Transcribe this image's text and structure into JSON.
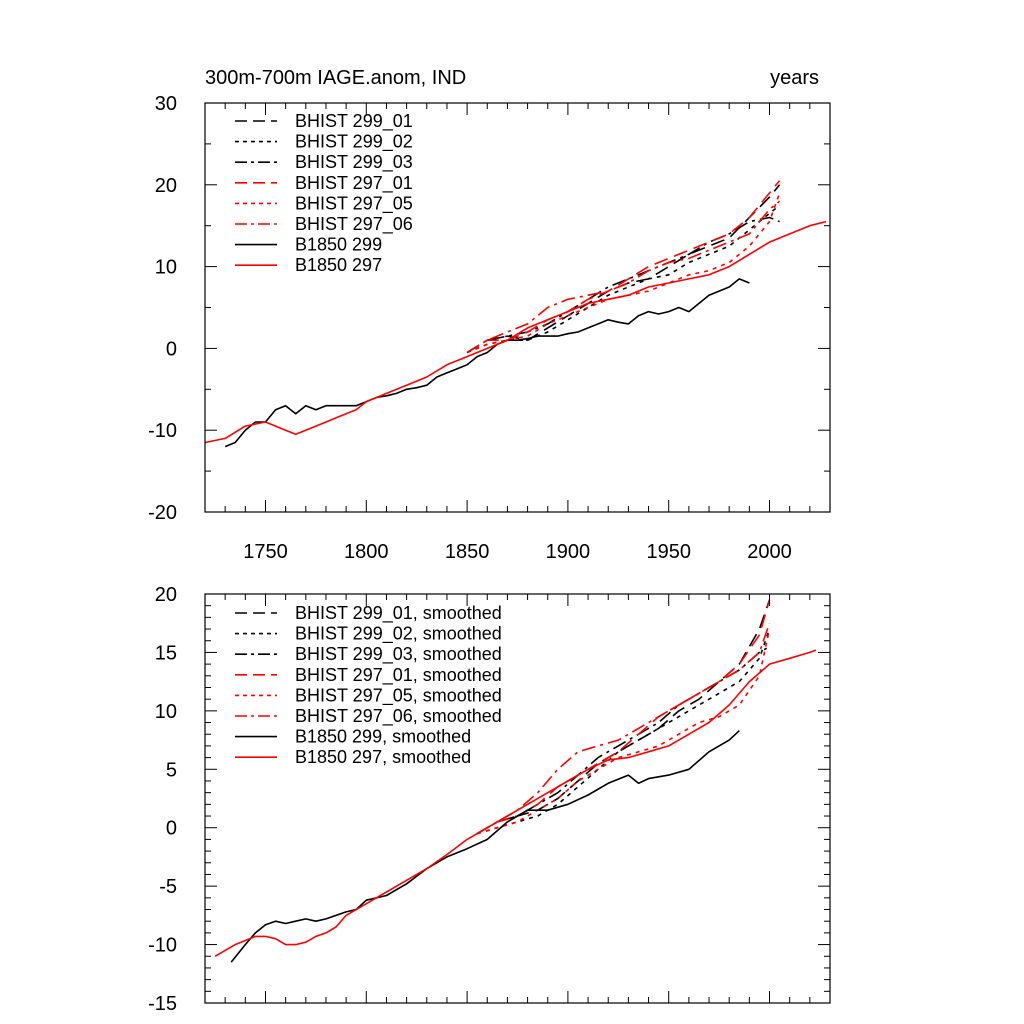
{
  "chart_data": [
    {
      "type": "line",
      "title_left": "300m-700m IAGE.anom, IND",
      "title_right": "years",
      "xlabel": "",
      "ylabel": "",
      "xlim": [
        1720,
        2030
      ],
      "ylim": [
        -20,
        30
      ],
      "xticks": [
        1750,
        1800,
        1850,
        1900,
        1950,
        2000
      ],
      "yticks": [
        -20,
        -10,
        0,
        10,
        20,
        30
      ],
      "grid": false,
      "legend_position": "top-left",
      "series": [
        {
          "name": "BHIST 299_01",
          "color": "#000000",
          "dash": "dash",
          "x": [
            1850,
            1860,
            1870,
            1880,
            1890,
            1900,
            1910,
            1920,
            1930,
            1940,
            1950,
            1960,
            1970,
            1980,
            1990,
            2000,
            2005
          ],
          "y": [
            -0.5,
            1.0,
            1.5,
            1.0,
            2.5,
            4.0,
            5.5,
            7.0,
            8.0,
            8.5,
            10.0,
            11.5,
            12.5,
            13.5,
            16.0,
            18.5,
            20.0
          ]
        },
        {
          "name": "BHIST 299_02",
          "color": "#000000",
          "dash": "dot",
          "x": [
            1850,
            1860,
            1870,
            1880,
            1890,
            1900,
            1910,
            1920,
            1930,
            1940,
            1950,
            1960,
            1970,
            1980,
            1990,
            2000,
            2005
          ],
          "y": [
            -0.5,
            0.5,
            1.0,
            1.0,
            2.0,
            3.5,
            5.0,
            6.5,
            7.5,
            8.5,
            9.0,
            10.5,
            11.5,
            12.5,
            14.5,
            16.5,
            17.5
          ]
        },
        {
          "name": "BHIST 299_03",
          "color": "#000000",
          "dash": "dashdot",
          "x": [
            1850,
            1860,
            1870,
            1880,
            1890,
            1900,
            1910,
            1920,
            1930,
            1940,
            1950,
            1960,
            1970,
            1980,
            1990,
            2000,
            2005
          ],
          "y": [
            -0.5,
            1.0,
            1.5,
            2.0,
            3.0,
            4.5,
            6.0,
            7.5,
            8.5,
            9.5,
            10.5,
            11.5,
            13.0,
            14.0,
            15.5,
            16.0,
            15.5
          ]
        },
        {
          "name": "BHIST 297_01",
          "color": "#ff0000",
          "dash": "dash",
          "x": [
            1850,
            1860,
            1870,
            1880,
            1890,
            1900,
            1910,
            1920,
            1930,
            1940,
            1950,
            1960,
            1970,
            1980,
            1990,
            2000,
            2005
          ],
          "y": [
            -0.5,
            1.0,
            1.0,
            2.0,
            3.5,
            4.5,
            6.0,
            7.0,
            8.5,
            10.0,
            11.0,
            12.0,
            13.0,
            14.0,
            16.0,
            19.0,
            20.5
          ]
        },
        {
          "name": "BHIST 297_05",
          "color": "#ff0000",
          "dash": "dot",
          "x": [
            1850,
            1860,
            1870,
            1880,
            1890,
            1900,
            1910,
            1920,
            1930,
            1940,
            1950,
            1960,
            1970,
            1980,
            1990,
            2000,
            2005
          ],
          "y": [
            -0.5,
            0.5,
            1.0,
            1.5,
            3.0,
            4.0,
            5.0,
            6.0,
            6.5,
            7.0,
            8.0,
            9.0,
            9.5,
            10.5,
            12.5,
            15.5,
            19.0
          ]
        },
        {
          "name": "BHIST 297_06",
          "color": "#ff0000",
          "dash": "dashdot",
          "x": [
            1850,
            1860,
            1870,
            1880,
            1890,
            1900,
            1910,
            1920,
            1930,
            1940,
            1950,
            1960,
            1970,
            1980,
            1990,
            2000,
            2005
          ],
          "y": [
            -0.5,
            1.0,
            2.0,
            3.0,
            5.0,
            6.0,
            6.5,
            7.0,
            8.0,
            9.5,
            10.5,
            11.0,
            12.0,
            13.0,
            14.0,
            17.0,
            18.0
          ]
        },
        {
          "name": "B1850 299",
          "color": "#000000",
          "dash": "solid",
          "x": [
            1730,
            1735,
            1740,
            1745,
            1750,
            1755,
            1760,
            1765,
            1770,
            1775,
            1780,
            1785,
            1790,
            1795,
            1800,
            1805,
            1810,
            1815,
            1820,
            1825,
            1830,
            1835,
            1840,
            1845,
            1850,
            1855,
            1860,
            1865,
            1870,
            1875,
            1880,
            1885,
            1890,
            1895,
            1900,
            1905,
            1910,
            1915,
            1920,
            1925,
            1930,
            1935,
            1940,
            1945,
            1950,
            1955,
            1960,
            1965,
            1970,
            1975,
            1980,
            1985,
            1990
          ],
          "y": [
            -12.0,
            -11.5,
            -10.0,
            -9.0,
            -9.0,
            -7.5,
            -7.0,
            -8.0,
            -7.0,
            -7.5,
            -7.0,
            -7.0,
            -7.0,
            -7.0,
            -6.5,
            -6.0,
            -5.8,
            -5.5,
            -5.0,
            -4.8,
            -4.5,
            -3.5,
            -3.0,
            -2.5,
            -2.0,
            -1.0,
            -0.5,
            0.5,
            1.0,
            1.0,
            1.2,
            1.5,
            1.5,
            1.5,
            1.8,
            2.0,
            2.5,
            3.0,
            3.5,
            3.2,
            3.0,
            4.0,
            4.5,
            4.2,
            4.5,
            5.0,
            4.5,
            5.5,
            6.5,
            7.0,
            7.5,
            8.5,
            8.0
          ]
        },
        {
          "name": "B1850 297",
          "color": "#ff0000",
          "dash": "solid",
          "x": [
            1720,
            1730,
            1740,
            1750,
            1755,
            1760,
            1765,
            1770,
            1775,
            1780,
            1785,
            1790,
            1795,
            1800,
            1810,
            1820,
            1830,
            1840,
            1850,
            1860,
            1870,
            1880,
            1890,
            1900,
            1910,
            1920,
            1930,
            1940,
            1950,
            1960,
            1970,
            1980,
            1990,
            2000,
            2010,
            2020,
            2028
          ],
          "y": [
            -11.5,
            -11.0,
            -9.5,
            -9.0,
            -9.5,
            -10.0,
            -10.5,
            -10.0,
            -9.5,
            -9.0,
            -8.5,
            -8.0,
            -7.5,
            -6.5,
            -5.5,
            -4.5,
            -3.5,
            -2.0,
            -1.0,
            0.0,
            1.0,
            2.5,
            3.5,
            4.5,
            5.5,
            6.0,
            6.5,
            7.5,
            8.0,
            8.5,
            9.0,
            10.0,
            11.5,
            13.0,
            14.0,
            15.0,
            15.5
          ]
        }
      ]
    },
    {
      "type": "line",
      "title_left": "",
      "title_right": "",
      "xlabel": "",
      "ylabel": "",
      "xlim": [
        1720,
        2030
      ],
      "ylim": [
        -15,
        20
      ],
      "xticks": [
        1750,
        1800,
        1850,
        1900,
        1950,
        2000
      ],
      "yticks": [
        -15,
        -10,
        -5,
        0,
        5,
        10,
        15,
        20
      ],
      "grid": false,
      "legend_position": "top-left",
      "series": [
        {
          "name": "BHIST 299_01, smoothed",
          "color": "#000000",
          "dash": "dash",
          "x": [
            1855,
            1865,
            1875,
            1885,
            1895,
            1905,
            1915,
            1925,
            1935,
            1945,
            1955,
            1965,
            1975,
            1985,
            1995,
            2000
          ],
          "y": [
            -0.5,
            0.5,
            1.0,
            1.5,
            2.5,
            4.0,
            5.5,
            6.5,
            7.5,
            8.5,
            10.0,
            11.0,
            12.5,
            14.0,
            17.0,
            19.5
          ]
        },
        {
          "name": "BHIST 299_02, smoothed",
          "color": "#000000",
          "dash": "dot",
          "x": [
            1855,
            1865,
            1875,
            1885,
            1895,
            1905,
            1915,
            1925,
            1935,
            1945,
            1955,
            1965,
            1975,
            1985,
            1995,
            2000
          ],
          "y": [
            -0.5,
            0.0,
            0.5,
            1.0,
            2.0,
            3.5,
            5.0,
            6.5,
            7.5,
            8.5,
            9.5,
            10.5,
            11.5,
            12.5,
            14.5,
            17.0
          ]
        },
        {
          "name": "BHIST 299_03, smoothed",
          "color": "#000000",
          "dash": "dashdot",
          "x": [
            1855,
            1865,
            1875,
            1885,
            1895,
            1905,
            1915,
            1925,
            1935,
            1945,
            1955,
            1965,
            1975,
            1985,
            1995,
            2000
          ],
          "y": [
            -0.5,
            0.5,
            1.0,
            2.0,
            3.0,
            4.5,
            6.0,
            7.0,
            8.0,
            9.0,
            10.5,
            11.5,
            12.5,
            13.5,
            15.0,
            15.5
          ]
        },
        {
          "name": "BHIST 297_01, smoothed",
          "color": "#ff0000",
          "dash": "dash",
          "x": [
            1855,
            1865,
            1875,
            1885,
            1895,
            1905,
            1915,
            1925,
            1935,
            1945,
            1955,
            1965,
            1975,
            1985,
            1995,
            2000
          ],
          "y": [
            -0.5,
            0.5,
            1.0,
            2.0,
            3.5,
            4.5,
            5.5,
            6.5,
            8.0,
            9.5,
            10.5,
            11.5,
            12.5,
            14.0,
            16.5,
            19.5
          ]
        },
        {
          "name": "BHIST 297_05, smoothed",
          "color": "#ff0000",
          "dash": "dot",
          "x": [
            1855,
            1865,
            1875,
            1885,
            1895,
            1905,
            1915,
            1925,
            1935,
            1945,
            1955,
            1965,
            1975,
            1985,
            1995,
            2000
          ],
          "y": [
            -0.5,
            0.0,
            0.5,
            1.5,
            2.5,
            4.0,
            5.0,
            6.0,
            6.5,
            7.0,
            8.0,
            9.0,
            9.5,
            10.5,
            13.0,
            17.0
          ]
        },
        {
          "name": "BHIST 297_06, smoothed",
          "color": "#ff0000",
          "dash": "dashdot",
          "x": [
            1855,
            1865,
            1875,
            1885,
            1895,
            1905,
            1915,
            1925,
            1935,
            1945,
            1955,
            1965,
            1975,
            1985,
            1995,
            2000
          ],
          "y": [
            -0.5,
            0.5,
            1.5,
            3.0,
            5.0,
            6.5,
            7.0,
            7.5,
            8.5,
            9.5,
            10.5,
            11.5,
            12.5,
            13.5,
            15.0,
            17.5
          ]
        },
        {
          "name": "B1850 299, smoothed",
          "color": "#000000",
          "dash": "solid",
          "x": [
            1733,
            1740,
            1745,
            1750,
            1755,
            1760,
            1765,
            1770,
            1775,
            1780,
            1785,
            1790,
            1795,
            1800,
            1810,
            1820,
            1830,
            1840,
            1850,
            1860,
            1870,
            1880,
            1885,
            1890,
            1900,
            1910,
            1920,
            1930,
            1935,
            1940,
            1950,
            1960,
            1970,
            1980,
            1985
          ],
          "y": [
            -11.5,
            -10.0,
            -9.0,
            -8.3,
            -8.0,
            -8.2,
            -8.0,
            -7.8,
            -8.0,
            -7.8,
            -7.5,
            -7.2,
            -7.0,
            -6.2,
            -5.8,
            -4.8,
            -3.5,
            -2.5,
            -1.8,
            -1.0,
            0.5,
            1.5,
            1.5,
            1.5,
            2.0,
            2.8,
            3.8,
            4.5,
            3.8,
            4.2,
            4.5,
            5.0,
            6.5,
            7.5,
            8.3
          ]
        },
        {
          "name": "B1850 297, smoothed",
          "color": "#ff0000",
          "dash": "solid",
          "x": [
            1725,
            1735,
            1745,
            1750,
            1755,
            1760,
            1765,
            1770,
            1775,
            1780,
            1785,
            1790,
            1800,
            1810,
            1820,
            1830,
            1840,
            1850,
            1860,
            1870,
            1880,
            1890,
            1900,
            1910,
            1920,
            1930,
            1940,
            1950,
            1960,
            1970,
            1980,
            1990,
            2000,
            2010,
            2020,
            2023
          ],
          "y": [
            -11.0,
            -10.0,
            -9.3,
            -9.3,
            -9.5,
            -10.0,
            -10.0,
            -9.8,
            -9.3,
            -9.0,
            -8.5,
            -7.5,
            -6.5,
            -5.5,
            -4.5,
            -3.5,
            -2.3,
            -1.0,
            0.0,
            1.0,
            2.0,
            3.0,
            4.0,
            5.0,
            5.8,
            6.0,
            6.5,
            7.0,
            8.0,
            9.0,
            10.5,
            12.5,
            14.0,
            14.5,
            15.0,
            15.2
          ]
        }
      ]
    }
  ]
}
